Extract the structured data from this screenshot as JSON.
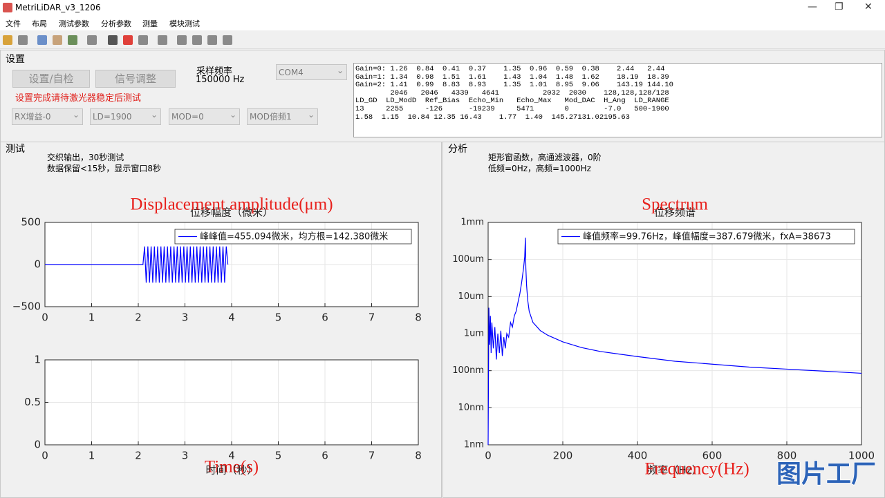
{
  "window": {
    "title": "MetriLiDAR_v3_1206"
  },
  "menu": [
    "文件",
    "布局",
    "测试参数",
    "分析参数",
    "测量",
    "模块测试"
  ],
  "settings": {
    "title": "设置",
    "buttons": [
      "设置/自检",
      "信号调整"
    ],
    "warning": "设置完成请待激光器稳定后测试",
    "sample_rate_label": "采样频率",
    "sample_rate": "150000 Hz",
    "port": "COM4",
    "dropdowns": [
      "RX增益-0",
      "LD=1900",
      "MOD=0",
      "MOD倍频1"
    ],
    "log": [
      "Gain=0: 1.26  0.84  0.41  0.37    1.35  0.96  0.59  0.38    2.44   2.44",
      "Gain=1: 1.34  0.98  1.51  1.61    1.43  1.04  1.48  1.62    18.19  18.39",
      "Gain=2: 1.41  0.99  8.83  8.93    1.35  1.01  8.95  9.06    143.19 144.10",
      "        2046   2046   4339   4641          2032  2030    128,128,128/128",
      "LD_GD  LD_ModD  Ref_Bias  Echo_Min   Echo_Max   Mod_DAC  H_Ang  LD_RANGE",
      "13     2255     -126      -19239     5471       0        -7.0   500-1900",
      "1.58  1.15  10.84 12.35 16.43    1.77  1.40  145.27131.02195.63"
    ]
  },
  "test": {
    "title": "测试",
    "info": [
      "交织输出，30秒测试",
      "数据保留<15秒，显示窗口8秒"
    ]
  },
  "analysis": {
    "title": "分析",
    "info": [
      "矩形窗函数，高通滤波器，0阶",
      "低频=0Hz，高频=1000Hz"
    ]
  },
  "watermark": "图片工厂",
  "chart_data": [
    {
      "type": "line",
      "title": "位移幅度（微米）",
      "annotation": "Displacement amplitude(μm)",
      "xlim": [
        0,
        8
      ],
      "xticks": [
        0,
        1,
        2,
        3,
        4,
        5,
        6,
        7,
        8
      ],
      "ylim": [
        -500,
        500
      ],
      "yticks": [
        {
          "value": -500,
          "label": "−500"
        },
        0,
        500
      ],
      "grid": true,
      "series": [
        {
          "name": "峰峰值=455.094微米，均方根=142.380微米",
          "color": "#0000ff",
          "x": [
            0,
            2.1,
            2.135,
            2.17,
            2.205,
            2.24,
            2.275,
            2.31,
            2.345,
            2.38,
            2.415,
            2.45,
            2.485,
            2.52,
            2.555,
            2.59,
            2.625,
            2.66,
            2.695,
            2.73,
            2.765,
            2.8,
            2.835,
            2.87,
            2.905,
            2.94,
            2.975,
            3.01,
            3.045,
            3.08,
            3.115,
            3.15,
            3.185,
            3.22,
            3.255,
            3.29,
            3.325,
            3.36,
            3.395,
            3.43,
            3.465,
            3.5,
            3.535,
            3.57,
            3.605,
            3.64,
            3.675,
            3.71,
            3.745,
            3.78,
            3.815,
            3.85,
            3.885,
            3.92
          ],
          "values": [
            0,
            0,
            215,
            -215,
            215,
            -215,
            215,
            -215,
            215,
            -215,
            215,
            -215,
            215,
            -215,
            215,
            -215,
            215,
            -215,
            215,
            -215,
            215,
            -215,
            215,
            -215,
            215,
            -215,
            215,
            -215,
            215,
            -215,
            215,
            -215,
            215,
            -215,
            215,
            -215,
            215,
            -215,
            215,
            -215,
            215,
            -215,
            215,
            -215,
            215,
            -215,
            215,
            -215,
            215,
            -215,
            215,
            -215,
            215,
            0
          ]
        }
      ]
    },
    {
      "type": "line",
      "xlabel": "时间（秒）",
      "annotation": "Time(s)",
      "xlim": [
        0,
        8
      ],
      "xticks": [
        0,
        1,
        2,
        3,
        4,
        5,
        6,
        7,
        8
      ],
      "ylim": [
        0,
        1
      ],
      "yticks": [
        0,
        0.5,
        1
      ],
      "grid": true
    },
    {
      "type": "line",
      "title": "位移频谱",
      "annotation": "Spectrum",
      "xlabel": "频率（Hz）",
      "xlabel_annotation": "Frequency(Hz)",
      "log_y": true,
      "xlim": [
        0,
        1000
      ],
      "xticks": [
        0,
        200,
        400,
        600,
        800,
        1000
      ],
      "ylim": [
        0.001,
        1000
      ],
      "yticks": [
        {
          "value": 0.001,
          "label": "1nm"
        },
        {
          "value": 0.01,
          "label": "10nm"
        },
        {
          "value": 0.1,
          "label": "100nm"
        },
        {
          "value": 1,
          "label": "1um"
        },
        {
          "value": 10,
          "label": "10um"
        },
        {
          "value": 100,
          "label": "100um"
        },
        {
          "value": 1000,
          "label": "1mm"
        }
      ],
      "grid": true,
      "series": [
        {
          "name": "峰值频率=99.76Hz，峰值幅度=387.679微米，fxA=38673",
          "color": "#0000ff",
          "x": [
            0,
            2,
            4,
            6,
            8,
            10,
            14,
            18,
            22,
            26,
            30,
            34,
            38,
            42,
            46,
            50,
            55,
            60,
            65,
            70,
            75,
            80,
            85,
            90,
            95,
            98,
            99.76,
            101,
            103,
            106,
            110,
            120,
            140,
            160,
            200,
            250,
            300,
            400,
            500,
            600,
            700,
            800,
            900,
            1000
          ],
          "values": [
            0.001,
            5,
            0.5,
            3,
            0.3,
            2,
            0.4,
            1.5,
            0.2,
            1,
            0.3,
            1.2,
            0.25,
            0.8,
            0.4,
            1,
            0.8,
            2,
            1.5,
            3,
            4,
            7,
            12,
            25,
            60,
            120,
            387.679,
            60,
            20,
            8,
            4,
            2,
            1.2,
            0.9,
            0.6,
            0.42,
            0.33,
            0.24,
            0.18,
            0.15,
            0.125,
            0.11,
            0.097,
            0.085
          ]
        }
      ]
    }
  ]
}
